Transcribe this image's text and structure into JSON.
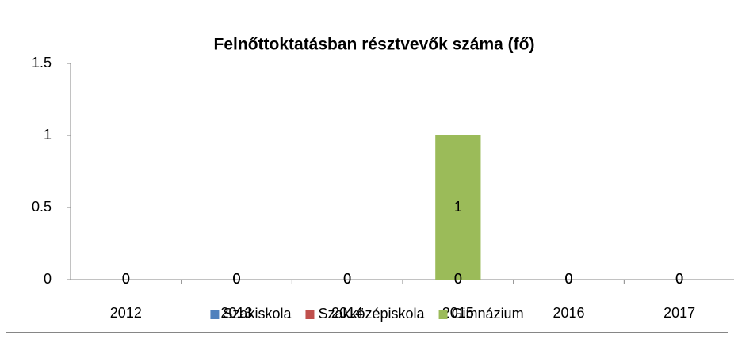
{
  "chart_data": {
    "type": "bar",
    "stacked": true,
    "title": "Felnőttoktatásban résztvevők száma (fő)",
    "categories": [
      "2012",
      "2013",
      "2014",
      "2015",
      "2016",
      "2017"
    ],
    "series": [
      {
        "name": "Szakiskola",
        "color": "#4f81bd",
        "values": [
          0,
          0,
          0,
          0,
          0,
          0
        ]
      },
      {
        "name": "Szakközépiskola",
        "color": "#c0504d",
        "values": [
          0,
          0,
          0,
          0,
          0,
          0
        ]
      },
      {
        "name": "Gimnázium",
        "color": "#9bbb59",
        "values": [
          0,
          0,
          0,
          1,
          0,
          0
        ]
      }
    ],
    "ylim": [
      0,
      1.5
    ],
    "yticks": [
      0,
      0.5,
      1,
      1.5
    ],
    "grid": false,
    "legend": "bottom"
  }
}
